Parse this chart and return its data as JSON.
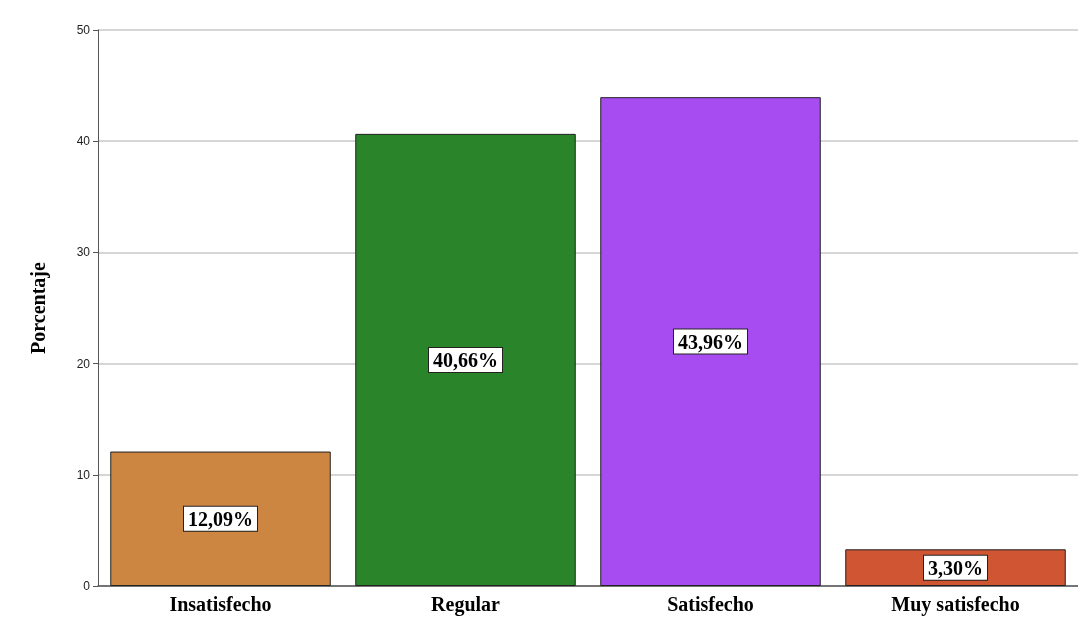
{
  "chart_data": {
    "type": "bar",
    "ylabel": "Porcentaje",
    "categories": [
      "Insatisfecho",
      "Regular",
      "Satisfecho",
      "Muy satisfecho"
    ],
    "values": [
      12.09,
      40.66,
      43.96,
      3.3
    ],
    "colors": [
      "#cc8642",
      "#2a852a",
      "#a64cf0",
      "#d05533"
    ],
    "value_labels": [
      "12,09%",
      "40,66%",
      "43,96%",
      "3,30%"
    ],
    "ylim": [
      0,
      50
    ],
    "yticks": [
      0,
      10,
      20,
      30,
      40,
      50
    ],
    "grid": "y"
  }
}
